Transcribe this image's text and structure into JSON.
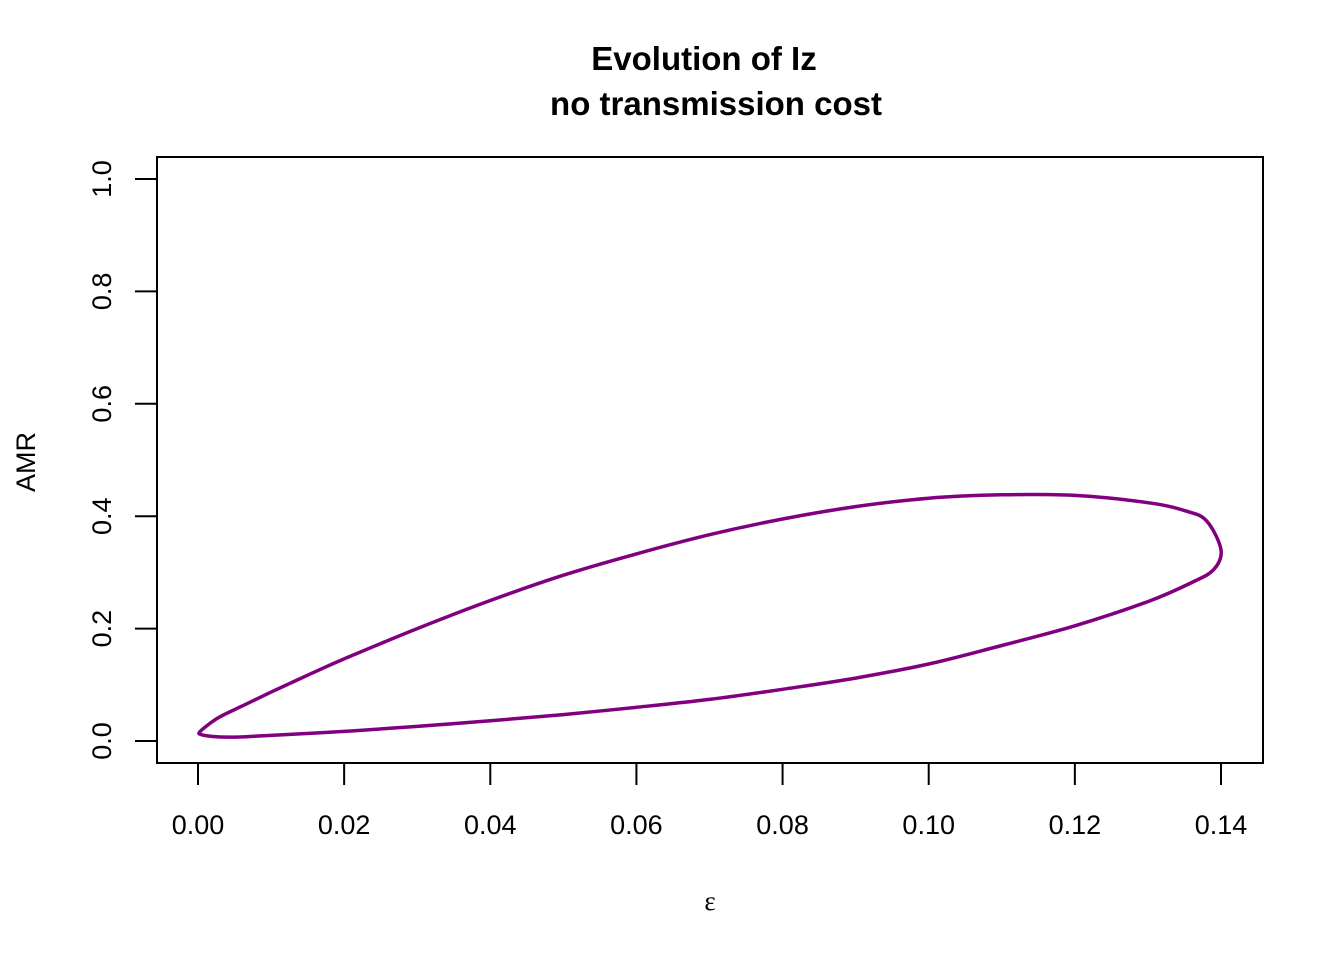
{
  "chart_data": {
    "type": "line",
    "title": "Evolution of Iz",
    "subtitle": "no transmission cost",
    "xlabel": "ε",
    "ylabel": "AMR",
    "xlim": [
      0.0,
      0.14
    ],
    "ylim": [
      0.0,
      1.0
    ],
    "x_ticks": [
      "0.00",
      "0.02",
      "0.04",
      "0.06",
      "0.08",
      "0.10",
      "0.12",
      "0.14"
    ],
    "y_ticks": [
      "0.0",
      "0.2",
      "0.4",
      "0.6",
      "0.8",
      "1.0"
    ],
    "grid": false,
    "legend": "none",
    "series": [
      {
        "color": "#800080",
        "x": [
          0.0003,
          0.0015,
          0.003,
          0.006,
          0.01,
          0.015,
          0.02,
          0.03,
          0.04,
          0.05,
          0.06,
          0.07,
          0.08,
          0.09,
          0.1,
          0.11,
          0.12,
          0.13,
          0.135,
          0.138,
          0.14,
          0.139,
          0.136,
          0.13,
          0.12,
          0.11,
          0.1,
          0.09,
          0.08,
          0.07,
          0.06,
          0.05,
          0.04,
          0.03,
          0.02,
          0.01,
          0.005,
          0.002,
          0.0003
        ],
        "y": [
          0.017,
          0.03,
          0.043,
          0.062,
          0.087,
          0.117,
          0.146,
          0.2,
          0.25,
          0.295,
          0.333,
          0.367,
          0.395,
          0.417,
          0.432,
          0.438,
          0.437,
          0.424,
          0.41,
          0.392,
          0.34,
          0.305,
          0.282,
          0.248,
          0.205,
          0.17,
          0.137,
          0.112,
          0.092,
          0.074,
          0.06,
          0.047,
          0.036,
          0.026,
          0.017,
          0.01,
          0.007,
          0.008,
          0.012
        ]
      }
    ]
  }
}
